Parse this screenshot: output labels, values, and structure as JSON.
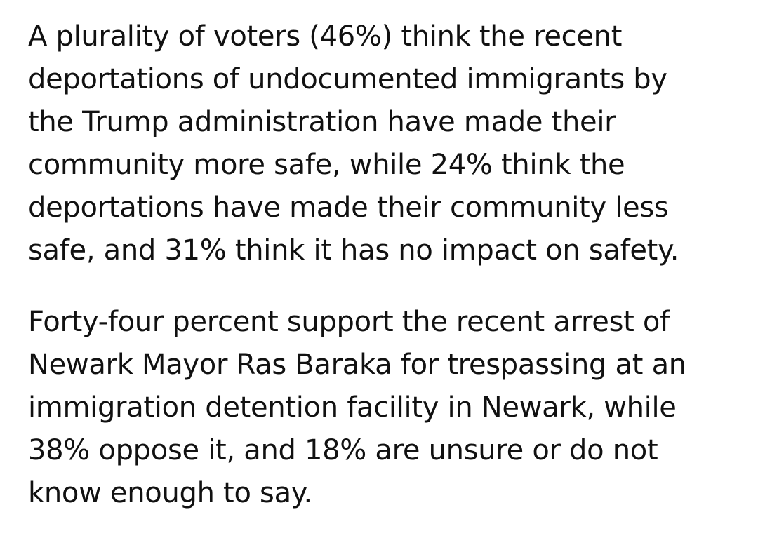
{
  "paragraphs": [
    {
      "lines": [
        "A plurality of voters (46%) think the recent",
        "deportations of undocumented immigrants by",
        "the Trump administration have made their",
        "community more safe, while 24% think the",
        "deportations have made their community less",
        "safe, and 31% think it has no impact on safety."
      ]
    },
    {
      "lines": [
        "Forty-four percent support the recent arrest of",
        "Newark Mayor Ras Baraka for trespassing at an",
        "immigration detention facility in Newark, while",
        "38% oppose it, and 18% are unsure or do not",
        "know enough to say."
      ]
    }
  ]
}
